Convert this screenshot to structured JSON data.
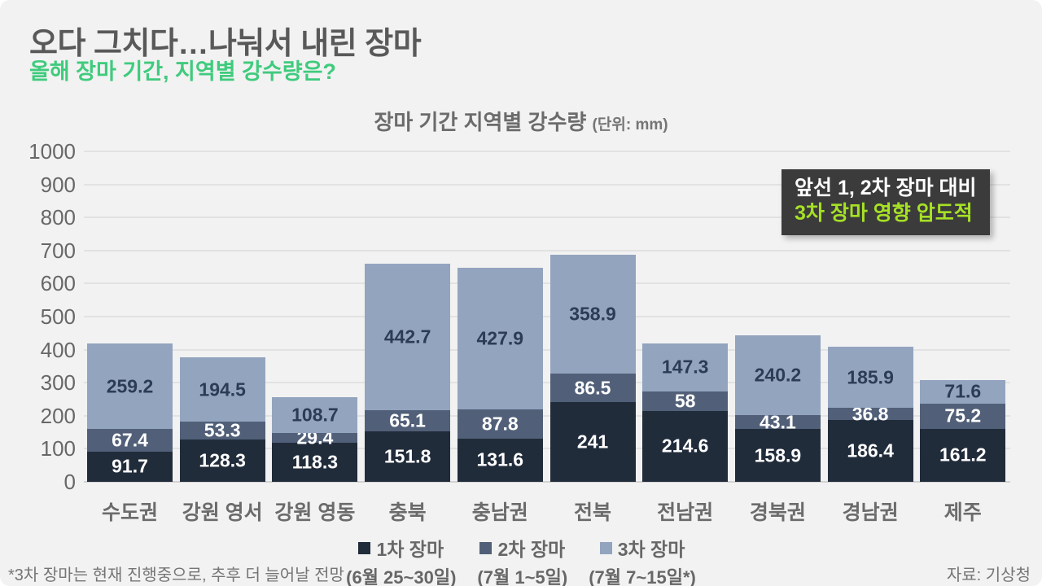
{
  "page": {
    "title": "오다 그치다…나눠서 내린 장마",
    "subtitle": "올해 장마 기간, 지역별 강수량은?",
    "footnote": "*3차 장마는 현재 진행중으로, 추후 더 늘어날 전망",
    "source": "자료: 기상청"
  },
  "chart_header": {
    "title": "장마 기간 지역별 강수량",
    "unit": "(단위: mm)"
  },
  "annotation": {
    "line1": "앞선 1, 2차 장마 대비",
    "line2": "3차 장마 영향 압도적",
    "bg": "#3b3b3b",
    "line1_color": "#ffffff",
    "line2_color": "#a6e125"
  },
  "colors": {
    "background": "#f2f2f2",
    "title": "#595959",
    "subtitle_green": "#3fcb7d",
    "grid": "#e2e2e2",
    "axis_text": "#676767"
  },
  "chart_data": {
    "type": "bar",
    "stacked": true,
    "title": "장마 기간 지역별 강수량",
    "unit": "mm",
    "ylim": [
      0,
      1000
    ],
    "ytick_step": 100,
    "grid": true,
    "legend_position": "bottom",
    "categories": [
      "수도권",
      "강원 영서",
      "강원 영동",
      "충북",
      "충남권",
      "전북",
      "전남권",
      "경북권",
      "경남권",
      "제주"
    ],
    "series": [
      {
        "name": "1차 장마",
        "period": "(6월 25~30일)",
        "color": "#212c3b",
        "label_color": "#ffffff",
        "values": [
          91.7,
          128.3,
          118.3,
          151.8,
          131.6,
          241,
          214.6,
          158.9,
          186.4,
          161.2
        ]
      },
      {
        "name": "2차 장마",
        "period": "(7월 1~5일)",
        "color": "#516078",
        "label_color": "#ffffff",
        "values": [
          67.4,
          53.3,
          29.4,
          65.1,
          87.8,
          86.5,
          58,
          43.1,
          36.8,
          75.2
        ]
      },
      {
        "name": "3차 장마",
        "period": "(7월 7~15일*)",
        "color": "#93a4bf",
        "label_color": "#2c3c55",
        "values": [
          259.2,
          194.5,
          108.7,
          442.7,
          427.9,
          358.9,
          147.3,
          240.2,
          185.9,
          71.6
        ]
      }
    ]
  }
}
